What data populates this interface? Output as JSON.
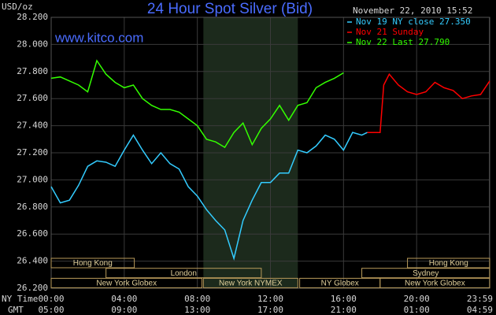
{
  "chart_data": {
    "type": "line",
    "title": "24 Hour Spot Silver (Bid)",
    "watermark": "www.kitco.com",
    "y_unit": "USD/oz",
    "timestamp": "November 22, 2010 15:52",
    "x_row_labels": [
      "NY Time",
      "GMT"
    ],
    "xlim": [
      0,
      24
    ],
    "ylim": [
      26.2,
      28.2
    ],
    "yticks": [
      {
        "value": 26.2,
        "label": "26.200"
      },
      {
        "value": 26.4,
        "label": "26.400"
      },
      {
        "value": 26.6,
        "label": "26.600"
      },
      {
        "value": 26.8,
        "label": "26.800"
      },
      {
        "value": 27.0,
        "label": "27.000"
      },
      {
        "value": 27.2,
        "label": "27.200"
      },
      {
        "value": 27.4,
        "label": "27.400"
      },
      {
        "value": 27.6,
        "label": "27.600"
      },
      {
        "value": 27.8,
        "label": "27.800"
      },
      {
        "value": 28.0,
        "label": "28.000"
      },
      {
        "value": 28.2,
        "label": "28.200"
      }
    ],
    "xticks": [
      {
        "value": 0,
        "label": "00:00"
      },
      {
        "value": 4,
        "label": "04:00"
      },
      {
        "value": 8,
        "label": "08:00"
      },
      {
        "value": 12,
        "label": "12:00"
      },
      {
        "value": 16,
        "label": "16:00"
      },
      {
        "value": 20,
        "label": "20:00"
      },
      {
        "value": 23.98,
        "label": "23:59"
      }
    ],
    "xticks_gmt": [
      {
        "value": 0,
        "label": "05:00"
      },
      {
        "value": 4,
        "label": "09:00"
      },
      {
        "value": 8,
        "label": "13:00"
      },
      {
        "value": 12,
        "label": "17:00"
      },
      {
        "value": 16,
        "label": "21:00"
      },
      {
        "value": 20,
        "label": "01:00"
      },
      {
        "value": 23.98,
        "label": "04:59"
      }
    ],
    "grid": true,
    "shaded_range": [
      8.33,
      13.5
    ],
    "sessions": [
      [
        {
          "label": "Hong Kong",
          "start": 0,
          "end": 4.55
        },
        {
          "label": "Hong Kong",
          "start": 19.5,
          "end": 24
        }
      ],
      [
        {
          "label": "London",
          "start": 3,
          "end": 11.5
        },
        {
          "label": "Sydney",
          "start": 17,
          "end": 24
        }
      ],
      [
        {
          "label": "New York Globex",
          "start": 0,
          "end": 8.25
        },
        {
          "label": "New York NYMEX",
          "start": 8.33,
          "end": 13.5
        },
        {
          "label": "NY Globex",
          "start": 13.6,
          "end": 18
        },
        {
          "label": "New York Globex",
          "start": 18,
          "end": 24
        }
      ]
    ],
    "series": [
      {
        "name": "Nov 19 NY close 27.350",
        "color": "#33ccff",
        "x": [
          0,
          0.5,
          1,
          1.5,
          2,
          2.5,
          3,
          3.5,
          4,
          4.5,
          5,
          5.5,
          6,
          6.5,
          7,
          7.5,
          8,
          8.5,
          9,
          9.5,
          10,
          10.5,
          11,
          11.5,
          12,
          12.5,
          13,
          13.5,
          14,
          14.5,
          15,
          15.5,
          16,
          16.5,
          17,
          17.3
        ],
        "values": [
          26.95,
          26.83,
          26.85,
          26.96,
          27.1,
          27.14,
          27.13,
          27.1,
          27.22,
          27.33,
          27.22,
          27.12,
          27.2,
          27.12,
          27.08,
          26.95,
          26.88,
          26.78,
          26.7,
          26.63,
          26.42,
          26.7,
          26.85,
          26.98,
          26.98,
          27.05,
          27.05,
          27.22,
          27.2,
          27.25,
          27.33,
          27.3,
          27.22,
          27.35,
          27.33,
          27.35
        ]
      },
      {
        "name": "Nov 21 Sunday",
        "color": "#ff0000",
        "x": [
          17.3,
          18,
          18.2,
          18.5,
          19,
          19.5,
          20,
          20.5,
          21,
          21.5,
          22,
          22.5,
          23,
          23.5,
          24
        ],
        "values": [
          27.35,
          27.35,
          27.7,
          27.78,
          27.7,
          27.65,
          27.63,
          27.65,
          27.72,
          27.68,
          27.66,
          27.6,
          27.62,
          27.63,
          27.73
        ]
      },
      {
        "name": "Nov 22 Last 27.790",
        "color": "#33ff00",
        "x": [
          0,
          0.5,
          1,
          1.5,
          2,
          2.5,
          3,
          3.5,
          4,
          4.5,
          5,
          5.5,
          6,
          6.5,
          7,
          7.5,
          8,
          8.5,
          9,
          9.5,
          10,
          10.5,
          11,
          11.5,
          12,
          12.5,
          13,
          13.5,
          14,
          14.5,
          15,
          15.5,
          16
        ],
        "values": [
          27.75,
          27.76,
          27.73,
          27.7,
          27.65,
          27.88,
          27.78,
          27.72,
          27.68,
          27.7,
          27.6,
          27.55,
          27.52,
          27.52,
          27.5,
          27.45,
          27.4,
          27.3,
          27.28,
          27.24,
          27.35,
          27.42,
          27.26,
          27.38,
          27.45,
          27.55,
          27.44,
          27.55,
          27.57,
          27.68,
          27.72,
          27.75,
          27.79
        ]
      }
    ]
  }
}
